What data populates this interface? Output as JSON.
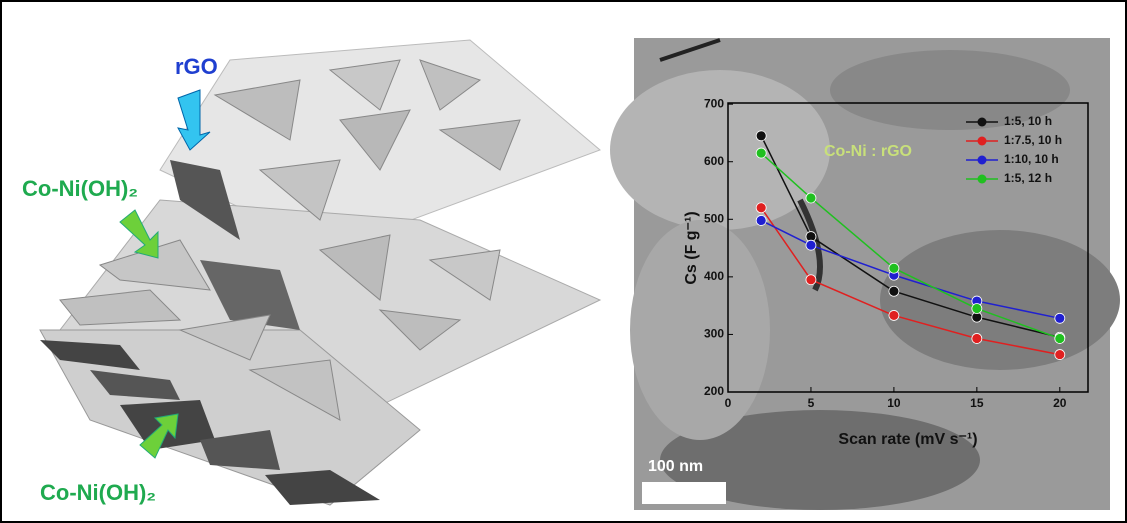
{
  "schematic": {
    "labels": [
      "rGO",
      "Co-Ni(OH)₂",
      "Co-Ni(OH)₂"
    ]
  },
  "image": {
    "scale_bar": "100 nm"
  },
  "chart_data": {
    "type": "line",
    "x_label": "Scan rate (mV s⁻¹)",
    "y_label": "Cs (F g⁻¹)",
    "annotation": "Co-Ni : rGO",
    "x": [
      2,
      5,
      10,
      15,
      20
    ],
    "series": [
      {
        "name": "1:5, 10 h",
        "color": "#111111",
        "values": [
          645,
          470,
          375,
          330,
          295
        ]
      },
      {
        "name": "1:7.5, 10 h",
        "color": "#e02020",
        "values": [
          520,
          395,
          333,
          293,
          265
        ]
      },
      {
        "name": "1:10, 10 h",
        "color": "#2020d0",
        "values": [
          498,
          455,
          403,
          358,
          328
        ]
      },
      {
        "name": "1:5, 12 h",
        "color": "#20c020",
        "values": [
          615,
          537,
          415,
          345,
          293
        ]
      }
    ],
    "xlim": [
      0,
      21.7
    ],
    "xticks": [
      0,
      5,
      10,
      15,
      20
    ],
    "ylim": [
      200,
      702
    ],
    "yticks": [
      200,
      300,
      400,
      500,
      600,
      700
    ]
  }
}
